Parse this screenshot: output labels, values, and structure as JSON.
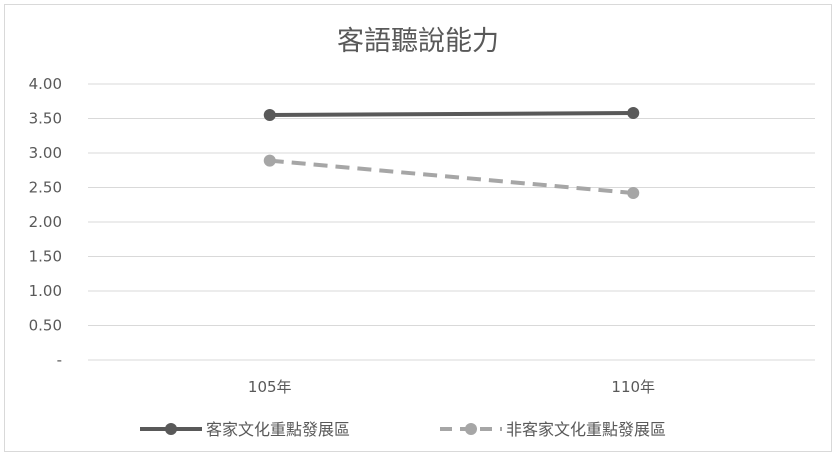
{
  "chart_data": {
    "type": "line",
    "title": "客語聽說能力",
    "xlabel": "",
    "ylabel": "",
    "categories": [
      "105年",
      "110年"
    ],
    "ylim": [
      0,
      4
    ],
    "y_ticks": [
      0,
      0.5,
      1,
      1.5,
      2,
      2.5,
      3,
      3.5,
      4
    ],
    "y_tick_labels": [
      "-",
      "0.50",
      "1.00",
      "1.50",
      "2.00",
      "2.50",
      "3.00",
      "3.50",
      "4.00"
    ],
    "grid": true,
    "legend_position": "bottom",
    "series": [
      {
        "name": "客家文化重點發展區",
        "values": [
          3.55,
          3.58
        ],
        "color": "#595959",
        "style": "solid"
      },
      {
        "name": "非客家文化重點發展區",
        "values": [
          2.89,
          2.42
        ],
        "color": "#a6a6a6",
        "style": "dashed"
      }
    ]
  }
}
